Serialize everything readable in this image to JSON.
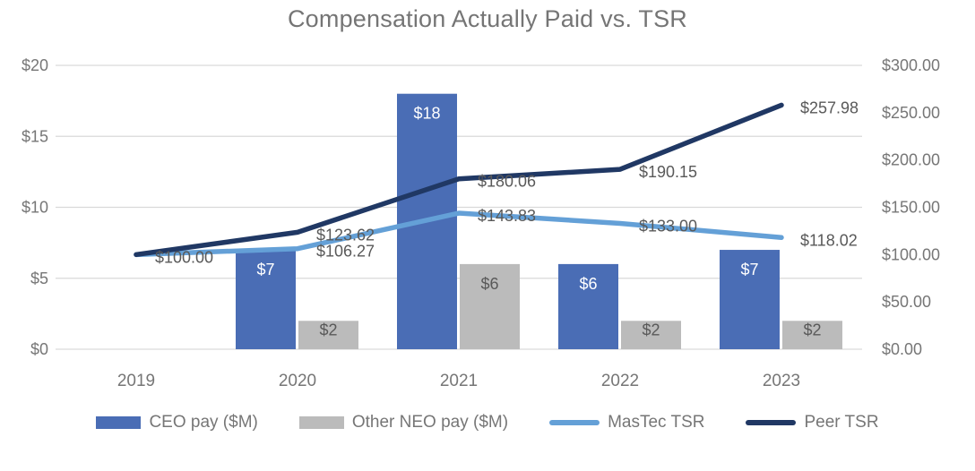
{
  "title": "Compensation Actually Paid vs. TSR",
  "chart_data": {
    "type": "combo-bar-line",
    "categories": [
      "2019",
      "2020",
      "2021",
      "2022",
      "2023"
    ],
    "bar_series": [
      {
        "name": "CEO pay ($M)",
        "color": "#4a6db5",
        "label_color": "#ffffff",
        "values": [
          null,
          7,
          18,
          6,
          7
        ],
        "labels": [
          "",
          "$7",
          "$18",
          "$6",
          "$7"
        ]
      },
      {
        "name": "Other NEO pay ($M)",
        "color": "#bbbbbb",
        "label_color": "#595959",
        "values": [
          null,
          2,
          6,
          2,
          2
        ],
        "labels": [
          "",
          "$2",
          "$6",
          "$2",
          "$2"
        ]
      }
    ],
    "line_series": [
      {
        "name": "MasTec TSR",
        "color": "#64a0d7",
        "values": [
          100.0,
          106.27,
          143.83,
          133.0,
          118.02
        ],
        "labels": [
          "",
          "$106.27",
          "$143.83",
          "$133.00",
          "$118.02"
        ]
      },
      {
        "name": "Peer TSR",
        "color": "#203864",
        "values": [
          100.0,
          123.62,
          180.06,
          190.15,
          257.98
        ],
        "labels": [
          "$100.00",
          "$123.62",
          "$180.06",
          "$190.15",
          "$257.98"
        ]
      }
    ],
    "left_axis": {
      "min": 0,
      "max": 20,
      "ticks": [
        "$0",
        "$5",
        "$10",
        "$15",
        "$20"
      ]
    },
    "right_axis": {
      "min": 0,
      "max": 300,
      "ticks": [
        "$0.00",
        "$50.00",
        "$100.00",
        "$150.00",
        "$200.00",
        "$250.00",
        "$300.00"
      ]
    },
    "grid": true,
    "legend_position": "bottom",
    "colors": {
      "grid": "#d9d9d9",
      "axis_text": "#767676",
      "data_label_text": "#595959",
      "title_text": "#757575"
    }
  },
  "legend": {
    "items": [
      {
        "label": "CEO pay ($M)",
        "swatch": "bar",
        "color": "#4a6db5"
      },
      {
        "label": "Other NEO pay ($M)",
        "swatch": "bar",
        "color": "#bbbbbb"
      },
      {
        "label": "MasTec TSR",
        "swatch": "line",
        "color": "#64a0d7"
      },
      {
        "label": "Peer TSR",
        "swatch": "line",
        "color": "#203864"
      }
    ]
  }
}
